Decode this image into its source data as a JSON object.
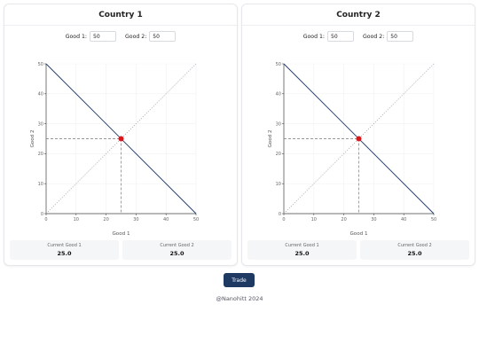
{
  "countries": [
    {
      "title": "Country 1",
      "good1_label": "Good 1:",
      "good1_value": "50",
      "good2_label": "Good 2:",
      "good2_value": "50",
      "current_good1_label": "Current Good 1",
      "current_good1_value": "25.0",
      "current_good2_label": "Current Good 2",
      "current_good2_value": "25.0"
    },
    {
      "title": "Country 2",
      "good1_label": "Good 1:",
      "good1_value": "50",
      "good2_label": "Good 2:",
      "good2_value": "50",
      "current_good1_label": "Current Good 1",
      "current_good1_value": "25.0",
      "current_good2_label": "Current Good 2",
      "current_good2_value": "25.0"
    }
  ],
  "chart_data": [
    {
      "type": "line",
      "xlabel": "Good 1",
      "ylabel": "Good 2",
      "xlim": [
        0,
        50
      ],
      "ylim": [
        0,
        50
      ],
      "x_ticks": [
        0,
        10,
        20,
        30,
        40,
        50
      ],
      "y_ticks": [
        0,
        10,
        20,
        30,
        40,
        50
      ],
      "grid": true,
      "series": [
        {
          "x": [
            0,
            50
          ],
          "y": [
            50,
            0
          ],
          "style": "solid",
          "color": "#1e3a63"
        },
        {
          "x": [
            0,
            50
          ],
          "y": [
            0,
            50
          ],
          "style": "dotted",
          "color": "#9aa0a6"
        }
      ],
      "point": {
        "x": 25,
        "y": 25,
        "color": "#d7191c"
      }
    },
    {
      "type": "line",
      "xlabel": "Good 1",
      "ylabel": "Good 2",
      "xlim": [
        0,
        50
      ],
      "ylim": [
        0,
        50
      ],
      "x_ticks": [
        0,
        10,
        20,
        30,
        40,
        50
      ],
      "y_ticks": [
        0,
        10,
        20,
        30,
        40,
        50
      ],
      "grid": true,
      "series": [
        {
          "x": [
            0,
            50
          ],
          "y": [
            50,
            0
          ],
          "style": "solid",
          "color": "#1e3a63"
        },
        {
          "x": [
            0,
            50
          ],
          "y": [
            0,
            50
          ],
          "style": "dotted",
          "color": "#9aa0a6"
        }
      ],
      "point": {
        "x": 25,
        "y": 25,
        "color": "#d7191c"
      }
    }
  ],
  "trade_button_label": "Trade",
  "footer_text": "@Nanohitt 2024"
}
